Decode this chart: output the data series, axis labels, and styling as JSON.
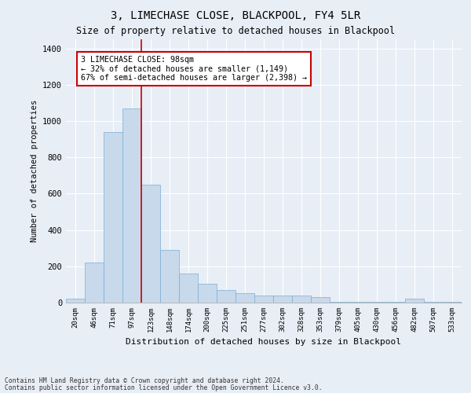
{
  "title": "3, LIMECHASE CLOSE, BLACKPOOL, FY4 5LR",
  "subtitle": "Size of property relative to detached houses in Blackpool",
  "xlabel": "Distribution of detached houses by size in Blackpool",
  "ylabel": "Number of detached properties",
  "bar_color": "#c8d9ec",
  "bar_edge_color": "#7aadd4",
  "background_color": "#e8eef6",
  "grid_color": "#ffffff",
  "categories": [
    "20sqm",
    "46sqm",
    "71sqm",
    "97sqm",
    "123sqm",
    "148sqm",
    "174sqm",
    "200sqm",
    "225sqm",
    "251sqm",
    "277sqm",
    "302sqm",
    "328sqm",
    "353sqm",
    "379sqm",
    "405sqm",
    "430sqm",
    "456sqm",
    "482sqm",
    "507sqm",
    "533sqm"
  ],
  "values": [
    20,
    220,
    940,
    1070,
    650,
    290,
    160,
    105,
    70,
    50,
    40,
    38,
    38,
    32,
    5,
    5,
    5,
    5,
    20,
    5,
    5
  ],
  "ylim": [
    0,
    1450
  ],
  "yticks": [
    0,
    200,
    400,
    600,
    800,
    1000,
    1200,
    1400
  ],
  "annotation_title": "3 LIMECHASE CLOSE: 98sqm",
  "annotation_line1": "← 32% of detached houses are smaller (1,149)",
  "annotation_line2": "67% of semi-detached houses are larger (2,398) →",
  "annotation_box_color": "white",
  "annotation_border_color": "#cc0000",
  "vline_color": "#cc0000",
  "footer_line1": "Contains HM Land Registry data © Crown copyright and database right 2024.",
  "footer_line2": "Contains public sector information licensed under the Open Government Licence v3.0."
}
